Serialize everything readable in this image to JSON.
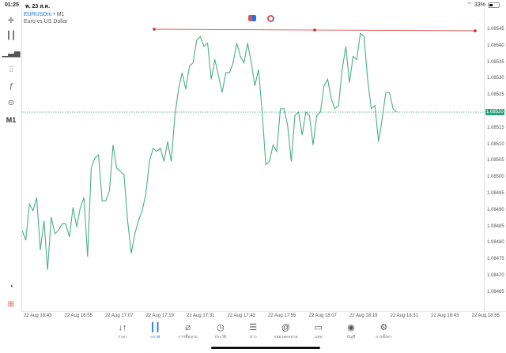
{
  "status_bar": {
    "time": "01:25",
    "date": "พ. 23 ส.ค.",
    "battery": "33%",
    "wifi_icon": "wifi-icon"
  },
  "symbol": {
    "name": "EURUSDm",
    "separator": "•",
    "timeframe": "M1",
    "description": "Euro vs US Dollar"
  },
  "left_toolbar": {
    "timeframe_label": "M1"
  },
  "colors": {
    "line": "#4caf86",
    "hline": "#d9534f",
    "current": "#2aa37f",
    "accent": "#1a73e8"
  },
  "chart_data": {
    "type": "line",
    "title": "EURUSDm M1",
    "xlabel": "",
    "ylabel": "",
    "ylim": [
      1.08462,
      1.08548
    ],
    "grid": false,
    "current_price": "1.08520",
    "horizontal_line": 1.08544,
    "price_ticks": [
      "1.08545",
      "1.08540",
      "1.08535",
      "1.08530",
      "1.08525",
      "1.08520",
      "1.08515",
      "1.08510",
      "1.08505",
      "1.08500",
      "1.08495",
      "1.08490",
      "1.08485",
      "1.08480",
      "1.08475",
      "1.08470",
      "1.08465"
    ],
    "time_ticks": [
      "22 Aug 16:43",
      "22 Aug 16:55",
      "22 Aug 17:07",
      "22 Aug 17:19",
      "22 Aug 17:31",
      "22 Aug 17:43",
      "22 Aug 17:55",
      "22 Aug 18:07",
      "22 Aug 18:19",
      "22 Aug 18:31",
      "22 Aug 18:43",
      "22 Aug 18:55"
    ],
    "points": [
      [
        0,
        1.08484
      ],
      [
        1,
        1.08481
      ],
      [
        2,
        1.08492
      ],
      [
        3,
        1.0849
      ],
      [
        4,
        1.08494
      ],
      [
        5,
        1.08478
      ],
      [
        6,
        1.08487
      ],
      [
        7,
        1.08472
      ],
      [
        8,
        1.08488
      ],
      [
        9,
        1.08483
      ],
      [
        10,
        1.08484
      ],
      [
        11,
        1.08486
      ],
      [
        12,
        1.08486
      ],
      [
        13,
        1.08482
      ],
      [
        14,
        1.08491
      ],
      [
        15,
        1.08485
      ],
      [
        16,
        1.08491
      ],
      [
        17,
        1.08494
      ],
      [
        18,
        1.08476
      ],
      [
        19,
        1.08503
      ],
      [
        20,
        1.08506
      ],
      [
        21,
        1.08507
      ],
      [
        22,
        1.08493
      ],
      [
        23,
        1.08493
      ],
      [
        24,
        1.08496
      ],
      [
        25,
        1.0851
      ],
      [
        26,
        1.08503
      ],
      [
        27,
        1.08502
      ],
      [
        28,
        1.08501
      ],
      [
        29,
        1.08487
      ],
      [
        30,
        1.08477
      ],
      [
        31,
        1.08483
      ],
      [
        32,
        1.08487
      ],
      [
        33,
        1.0849
      ],
      [
        34,
        1.08495
      ],
      [
        35,
        1.08505
      ],
      [
        36,
        1.08509
      ],
      [
        37,
        1.08508
      ],
      [
        38,
        1.08509
      ],
      [
        39,
        1.08505
      ],
      [
        40,
        1.08511
      ],
      [
        41,
        1.08505
      ],
      [
        42,
        1.08519
      ],
      [
        43,
        1.08527
      ],
      [
        44,
        1.08532
      ],
      [
        45,
        1.08527
      ],
      [
        46,
        1.08534
      ],
      [
        47,
        1.08535
      ],
      [
        48,
        1.08542
      ],
      [
        49,
        1.08543
      ],
      [
        50,
        1.0854
      ],
      [
        51,
        1.08541
      ],
      [
        52,
        1.0853
      ],
      [
        53,
        1.08536
      ],
      [
        54,
        1.08531
      ],
      [
        55,
        1.08526
      ],
      [
        56,
        1.08532
      ],
      [
        57,
        1.08532
      ],
      [
        58,
        1.08535
      ],
      [
        59,
        1.08541
      ],
      [
        60,
        1.08537
      ],
      [
        61,
        1.08535
      ],
      [
        62,
        1.08541
      ],
      [
        63,
        1.08535
      ],
      [
        64,
        1.08528
      ],
      [
        65,
        1.08533
      ],
      [
        66,
        1.0852
      ],
      [
        67,
        1.08504
      ],
      [
        68,
        1.08505
      ],
      [
        69,
        1.0851
      ],
      [
        70,
        1.08508
      ],
      [
        71,
        1.08521
      ],
      [
        72,
        1.08521
      ],
      [
        73,
        1.08516
      ],
      [
        74,
        1.08505
      ],
      [
        75,
        1.08519
      ],
      [
        76,
        1.0852
      ],
      [
        77,
        1.08513
      ],
      [
        78,
        1.0852
      ],
      [
        79,
        1.08519
      ],
      [
        80,
        1.0851
      ],
      [
        81,
        1.08519
      ],
      [
        82,
        1.0852
      ],
      [
        83,
        1.08528
      ],
      [
        84,
        1.0853
      ],
      [
        85,
        1.08524
      ],
      [
        86,
        1.08521
      ],
      [
        87,
        1.08522
      ],
      [
        88,
        1.08533
      ],
      [
        89,
        1.0854
      ],
      [
        90,
        1.08529
      ],
      [
        91,
        1.08537
      ],
      [
        92,
        1.08536
      ],
      [
        93,
        1.08544
      ],
      [
        94,
        1.08543
      ],
      [
        95,
        1.0853
      ],
      [
        96,
        1.08521
      ],
      [
        97,
        1.08522
      ],
      [
        98,
        1.08511
      ],
      [
        99,
        1.08518
      ],
      [
        100,
        1.08526
      ],
      [
        101,
        1.08526
      ],
      [
        102,
        1.08521
      ],
      [
        103,
        1.0852
      ]
    ]
  },
  "bottom_nav": [
    {
      "label": "ราคา",
      "icon": "quotes-icon",
      "glyph": "↓↑"
    },
    {
      "label": "กราฟ",
      "icon": "chart-icon",
      "glyph": "┃┃",
      "active": true
    },
    {
      "label": "การซื้อขาย",
      "icon": "trade-icon",
      "glyph": "⧄"
    },
    {
      "label": "ประวัติ",
      "icon": "history-icon",
      "glyph": "◷"
    },
    {
      "label": "ข่าว",
      "icon": "news-icon",
      "glyph": "☰"
    },
    {
      "label": "กล่องจดหมาย",
      "icon": "mailbox-icon",
      "glyph": "@"
    },
    {
      "label": "แชท",
      "icon": "chat-icon",
      "glyph": "▭"
    },
    {
      "label": "บัญชี",
      "icon": "account-icon",
      "glyph": "◉"
    },
    {
      "label": "การตั้งค่า",
      "icon": "settings-icon",
      "glyph": "⚙"
    }
  ]
}
